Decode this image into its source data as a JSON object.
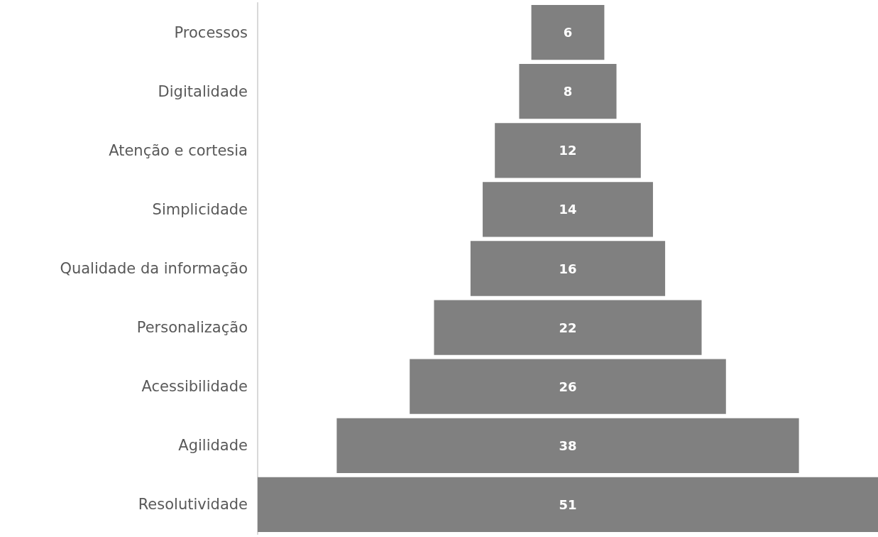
{
  "chart_data": {
    "type": "other",
    "categories": [
      "Processos",
      "Digitalidade",
      "Atenção e cortesia",
      "Simplicidade",
      "Qualidade da informação",
      "Personalização",
      "Acessibilidade",
      "Agilidade",
      "Resolutividade"
    ],
    "values": [
      6,
      8,
      12,
      14,
      16,
      22,
      26,
      38,
      51
    ],
    "color": "#808080",
    "data_labels": true
  }
}
